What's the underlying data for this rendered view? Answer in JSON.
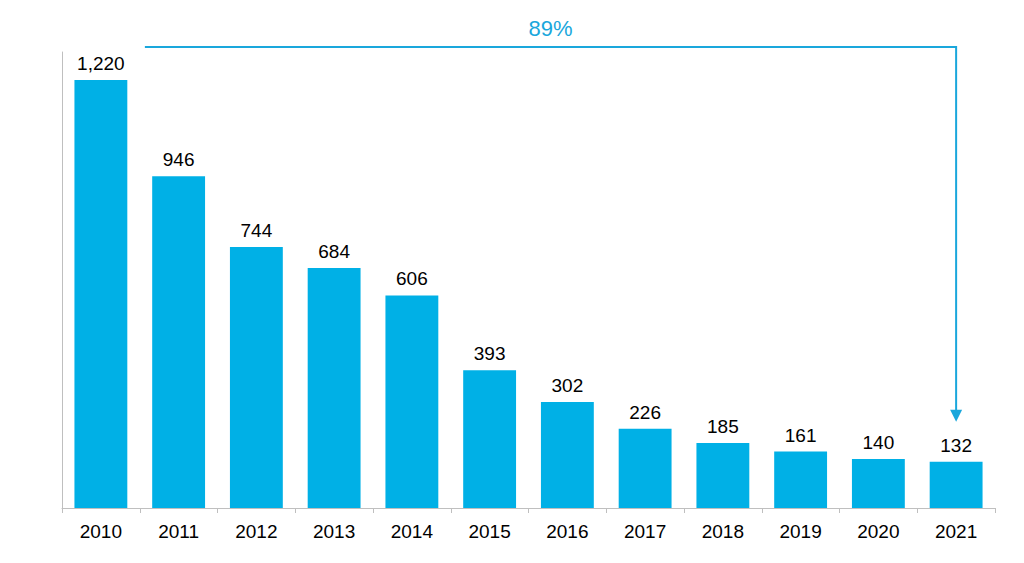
{
  "chart_data": {
    "type": "bar",
    "categories": [
      "2010",
      "2011",
      "2012",
      "2013",
      "2014",
      "2015",
      "2016",
      "2017",
      "2018",
      "2019",
      "2020",
      "2021"
    ],
    "values": [
      1220,
      946,
      744,
      684,
      606,
      393,
      302,
      226,
      185,
      161,
      140,
      132
    ],
    "value_labels": [
      "1,220",
      "946",
      "744",
      "684",
      "606",
      "393",
      "302",
      "226",
      "185",
      "161",
      "140",
      "132"
    ],
    "color": "#00b0e6",
    "ylim": [
      0,
      1300
    ],
    "data_labels": true,
    "tick_labels": "x",
    "grid": false,
    "annotation": {
      "text": "89%",
      "from": "2010",
      "to": "2021"
    }
  }
}
